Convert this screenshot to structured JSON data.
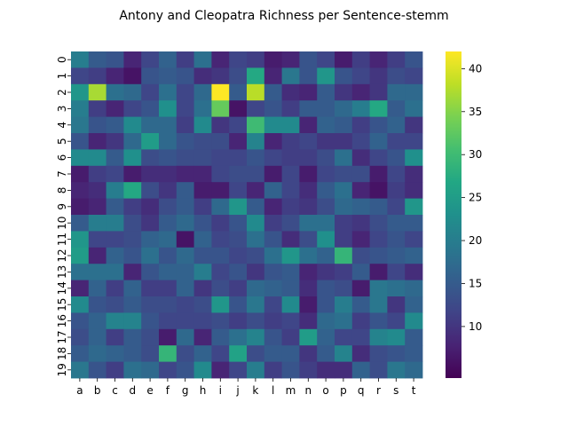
{
  "chart_data": {
    "type": "heatmap",
    "title": "Antony and Cleopatra Richness per Sentence-stemm",
    "xlabel": "",
    "ylabel": "",
    "x_categories": [
      "a",
      "b",
      "c",
      "d",
      "e",
      "f",
      "g",
      "h",
      "i",
      "j",
      "k",
      "l",
      "m",
      "n",
      "o",
      "p",
      "q",
      "r",
      "s",
      "t"
    ],
    "y_categories": [
      "0",
      "1",
      "2",
      "3",
      "4",
      "5",
      "6",
      "7",
      "8",
      "9",
      "10",
      "11",
      "12",
      "13",
      "14",
      "15",
      "16",
      "17",
      "18",
      "19"
    ],
    "colormap": "viridis",
    "vmin": 4,
    "vmax": 42,
    "colorbar_ticks": [
      10,
      15,
      20,
      25,
      30,
      35,
      40
    ],
    "values": [
      [
        20,
        15,
        14,
        8,
        12,
        16,
        11,
        18,
        8,
        12,
        11,
        7,
        8,
        14,
        12,
        7,
        11,
        8,
        11,
        14
      ],
      [
        12,
        11,
        8,
        6,
        14,
        15,
        14,
        9,
        10,
        13,
        27,
        8,
        19,
        14,
        24,
        14,
        12,
        10,
        13,
        12
      ],
      [
        24,
        37,
        18,
        17,
        12,
        18,
        12,
        17,
        42,
        15,
        38,
        15,
        9,
        8,
        15,
        10,
        8,
        10,
        17,
        17
      ],
      [
        20,
        11,
        8,
        12,
        14,
        23,
        12,
        18,
        33,
        6,
        12,
        14,
        11,
        15,
        15,
        17,
        20,
        27,
        15,
        18
      ],
      [
        19,
        14,
        15,
        22,
        17,
        17,
        11,
        22,
        10,
        12,
        30,
        22,
        22,
        8,
        16,
        15,
        11,
        14,
        16,
        10
      ],
      [
        14,
        8,
        10,
        17,
        25,
        17,
        14,
        13,
        13,
        8,
        21,
        8,
        11,
        12,
        10,
        10,
        12,
        16,
        12,
        12
      ],
      [
        22,
        22,
        15,
        23,
        13,
        14,
        13,
        13,
        12,
        12,
        14,
        12,
        11,
        11,
        13,
        18,
        9,
        12,
        14,
        23
      ],
      [
        7,
        11,
        12,
        7,
        9,
        9,
        8,
        8,
        12,
        13,
        13,
        7,
        12,
        7,
        12,
        13,
        13,
        7,
        12,
        9
      ],
      [
        8,
        9,
        20,
        27,
        13,
        10,
        15,
        7,
        7,
        12,
        8,
        16,
        12,
        9,
        15,
        18,
        8,
        6,
        11,
        9
      ],
      [
        7,
        8,
        15,
        11,
        9,
        13,
        15,
        11,
        17,
        24,
        15,
        8,
        11,
        10,
        13,
        17,
        16,
        15,
        12,
        24
      ],
      [
        15,
        20,
        20,
        13,
        10,
        15,
        17,
        14,
        11,
        14,
        22,
        11,
        13,
        18,
        18,
        11,
        10,
        13,
        15,
        15
      ],
      [
        24,
        12,
        12,
        13,
        16,
        17,
        6,
        16,
        12,
        13,
        18,
        14,
        9,
        13,
        23,
        11,
        8,
        12,
        14,
        12
      ],
      [
        25,
        8,
        16,
        14,
        18,
        14,
        17,
        14,
        14,
        12,
        13,
        18,
        24,
        18,
        16,
        29,
        13,
        14,
        15,
        16
      ],
      [
        18,
        18,
        18,
        8,
        14,
        16,
        16,
        20,
        12,
        14,
        10,
        14,
        15,
        8,
        10,
        11,
        15,
        7,
        12,
        9
      ],
      [
        8,
        16,
        11,
        16,
        11,
        11,
        16,
        10,
        13,
        11,
        17,
        16,
        15,
        9,
        14,
        13,
        7,
        19,
        18,
        17
      ],
      [
        22,
        14,
        13,
        15,
        13,
        13,
        12,
        13,
        24,
        14,
        19,
        12,
        22,
        7,
        14,
        20,
        15,
        19,
        10,
        16
      ],
      [
        14,
        16,
        21,
        21,
        14,
        12,
        12,
        12,
        13,
        11,
        13,
        11,
        12,
        9,
        17,
        18,
        11,
        14,
        12,
        22
      ],
      [
        13,
        16,
        11,
        15,
        13,
        7,
        17,
        8,
        15,
        18,
        21,
        14,
        11,
        25,
        16,
        12,
        12,
        21,
        22,
        15
      ],
      [
        15,
        17,
        16,
        15,
        13,
        29,
        13,
        16,
        12,
        26,
        13,
        15,
        15,
        10,
        15,
        21,
        9,
        13,
        14,
        15
      ],
      [
        19,
        14,
        11,
        18,
        17,
        12,
        14,
        22,
        8,
        12,
        20,
        11,
        14,
        11,
        9,
        9,
        16,
        13,
        19,
        17
      ]
    ]
  }
}
